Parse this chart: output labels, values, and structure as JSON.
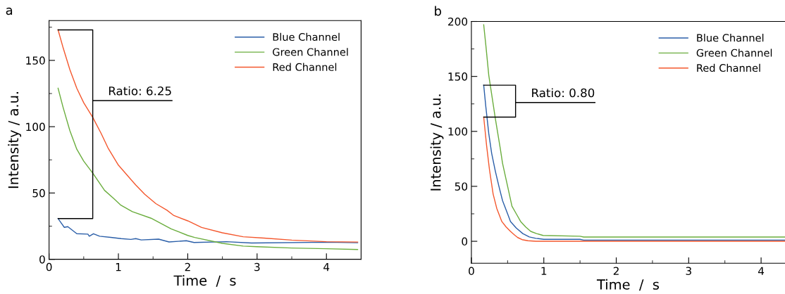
{
  "chart_data": [
    {
      "type": "line",
      "title": "a",
      "xlabel": "Time  /  s",
      "ylabel": "Intensity / a.u.",
      "xlim": [
        0,
        4.5
      ],
      "ylim": [
        0,
        180
      ],
      "xticks": [
        0,
        {
          "value": 0.5,
          "label": null
        },
        1,
        {
          "value": 1.5,
          "label": null
        },
        2,
        {
          "value": 2.5,
          "label": null
        },
        3,
        {
          "value": 3.5,
          "label": null
        },
        4
      ],
      "yticks": [
        0,
        {
          "value": 25,
          "label": null
        },
        50,
        {
          "value": 75,
          "label": null
        },
        100,
        {
          "value": 125,
          "label": null
        },
        150,
        {
          "value": 175,
          "label": null
        }
      ],
      "legend": "top right",
      "grid": false,
      "annotations": [
        {
          "text": "Ratio: 6.25",
          "x": 0.13,
          "y": 173
        }
      ],
      "series": [
        {
          "name": "Blue Channel",
          "color": "#2a5ea8",
          "x": [
            0.13,
            0.22,
            0.27,
            0.4,
            0.56,
            0.58,
            0.64,
            0.73,
            0.89,
            1.04,
            1.18,
            1.25,
            1.33,
            1.58,
            1.73,
            1.98,
            2.09,
            2.56,
            2.92,
            4.01,
            4.45
          ],
          "values": [
            30.7,
            24.1,
            24.6,
            19.3,
            19,
            17.4,
            19.3,
            17.4,
            16.5,
            15.6,
            15,
            15.6,
            14.6,
            15.2,
            13.1,
            14,
            12.7,
            13.3,
            12.3,
            12.9,
            12.5
          ]
        },
        {
          "name": "Green Channel",
          "color": "#6aad3d",
          "x": [
            0.13,
            0.2,
            0.3,
            0.4,
            0.5,
            0.63,
            0.8,
            0.93,
            1.03,
            1.2,
            1.47,
            1.76,
            2.0,
            2.1,
            2.5,
            2.8,
            3.0,
            3.5,
            4.0,
            4.45
          ],
          "values": [
            129,
            115,
            97,
            83,
            74,
            65,
            52,
            46,
            41,
            36,
            31,
            23,
            18,
            16.5,
            12,
            10,
            9.5,
            8.5,
            8,
            7.4
          ]
        },
        {
          "name": "Red Channel",
          "color": "#f4572d",
          "x": [
            0.13,
            0.2,
            0.3,
            0.4,
            0.5,
            0.63,
            0.75,
            0.85,
            1.0,
            1.15,
            1.25,
            1.38,
            1.54,
            1.7,
            1.8,
            2.0,
            2.2,
            2.5,
            2.8,
            3.1,
            3.5,
            4.0,
            4.45
          ],
          "values": [
            173,
            160,
            143,
            129,
            118,
            107,
            95,
            84,
            71,
            62,
            56,
            49,
            42,
            37,
            33,
            29,
            24,
            20,
            17,
            16,
            14.5,
            13.3,
            13
          ]
        }
      ]
    },
    {
      "type": "line",
      "title": "b",
      "xlabel": "Time  /  s",
      "ylabel": "Intensity / a.u.",
      "xlim": [
        0,
        4.33
      ],
      "ylim": [
        -20,
        200
      ],
      "xticks": [
        0,
        {
          "value": 0.5,
          "label": null
        },
        1,
        {
          "value": 1.5,
          "label": null
        },
        2,
        {
          "value": 2.5,
          "label": null
        },
        3,
        {
          "value": 3.5,
          "label": null
        },
        4
      ],
      "yticks": [
        0,
        {
          "value": 25,
          "label": null
        },
        50,
        {
          "value": 75,
          "label": null
        },
        100,
        {
          "value": 125,
          "label": null
        },
        150,
        {
          "value": 175,
          "label": null
        },
        200
      ],
      "legend": "top right",
      "grid": false,
      "annotations": [
        {
          "text": "Ratio: 0.80",
          "x": 0.17,
          "y": 142
        }
      ],
      "series": [
        {
          "name": "Blue Channel",
          "color": "#2a5ea8",
          "x": [
            0.17,
            0.2,
            0.24,
            0.28,
            0.33,
            0.38,
            0.43,
            0.5,
            0.54,
            0.62,
            0.71,
            0.8,
            0.89,
            1.0,
            1.5,
            1.55,
            4.33
          ],
          "values": [
            142,
            122,
            98,
            80,
            64,
            50,
            37,
            25,
            18,
            12,
            7,
            4,
            2.7,
            1.8,
            1.8,
            1.1,
            1.1
          ]
        },
        {
          "name": "Green Channel",
          "color": "#6aad3d",
          "x": [
            0.17,
            0.2,
            0.24,
            0.3,
            0.33,
            0.4,
            0.43,
            0.5,
            0.56,
            0.62,
            0.68,
            0.75,
            0.82,
            0.9,
            0.99,
            1.5,
            1.55,
            4.33
          ],
          "values": [
            197,
            178,
            151,
            125,
            112,
            84,
            71,
            50,
            32,
            25,
            18,
            13,
            9,
            7,
            5.3,
            4.6,
            3.9,
            3.9
          ]
        },
        {
          "name": "Red Channel",
          "color": "#f4572d",
          "x": [
            0.17,
            0.19,
            0.21,
            0.25,
            0.3,
            0.35,
            0.42,
            0.48,
            0.54,
            0.6,
            0.64,
            0.7,
            0.78,
            0.89,
            4.33
          ],
          "values": [
            113,
            100,
            87,
            65,
            43,
            30,
            18,
            13,
            9,
            5.5,
            3.4,
            1.5,
            0.5,
            0,
            0
          ]
        }
      ]
    }
  ]
}
